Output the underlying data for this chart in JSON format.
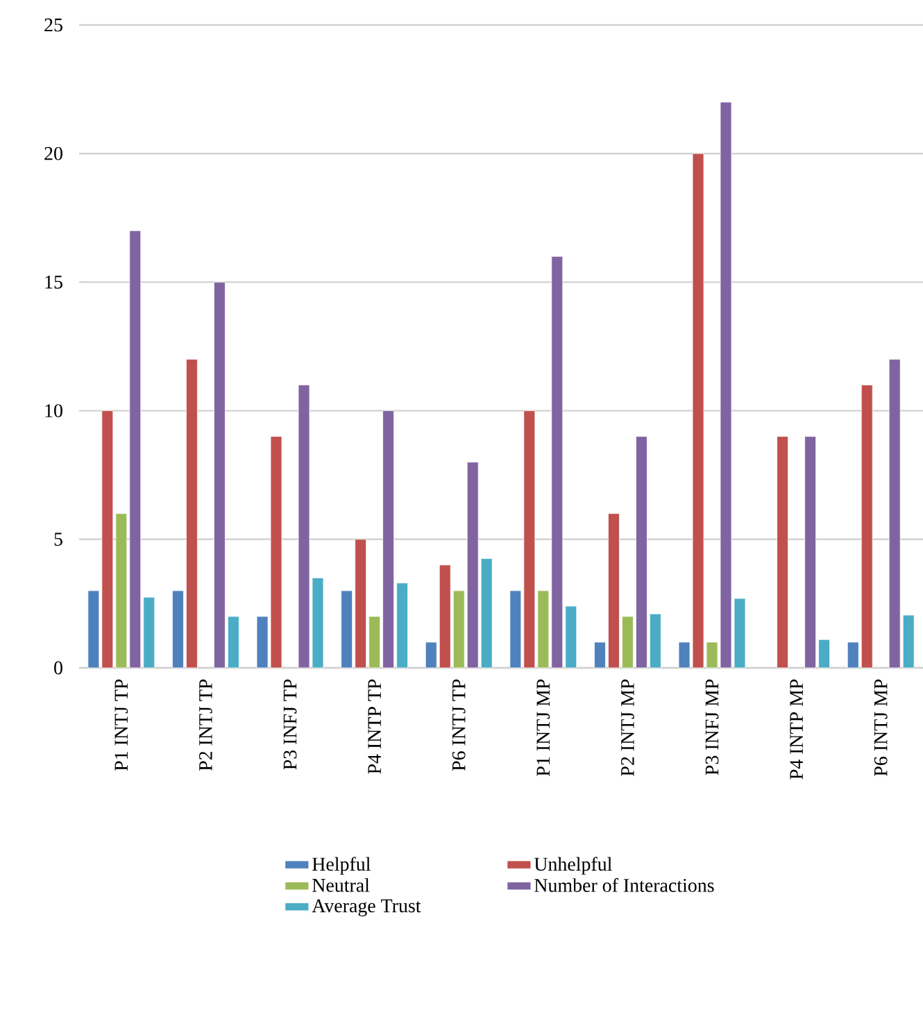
{
  "chart_data": {
    "type": "bar",
    "categories": [
      "P1 INTJ TP",
      "P2 INTJ TP",
      "P3 INFJ TP",
      "P4 INTP TP",
      "P6 INTJ TP",
      "P1 INTJ MP",
      "P2 INTJ MP",
      "P3 INFJ MP",
      "P4 INTP MP",
      "P6 INTJ MP"
    ],
    "series": [
      {
        "name": "Helpful",
        "color": "#4f81bd",
        "values": [
          3,
          3,
          2,
          3,
          1,
          3,
          1,
          1,
          null,
          1
        ]
      },
      {
        "name": "Unhelpful",
        "color": "#c0504d",
        "values": [
          10,
          12,
          9,
          5,
          4,
          10,
          6,
          20,
          9,
          11
        ]
      },
      {
        "name": "Neutral",
        "color": "#9bbb59",
        "values": [
          6,
          null,
          null,
          2,
          3,
          3,
          2,
          1,
          null,
          null
        ]
      },
      {
        "name": "Number of Interactions",
        "color": "#8064a2",
        "values": [
          17,
          15,
          11,
          10,
          8,
          16,
          9,
          22,
          9,
          12
        ]
      },
      {
        "name": "Average Trust",
        "color": "#4bacc6",
        "values": [
          2.75,
          2.0,
          3.5,
          3.3,
          4.25,
          2.4,
          2.1,
          2.7,
          1.1,
          2.05
        ]
      }
    ],
    "ylim": [
      0,
      25
    ],
    "yticks": [
      0,
      5,
      10,
      15,
      20,
      25
    ],
    "grid": "y",
    "legend": "bottom"
  }
}
